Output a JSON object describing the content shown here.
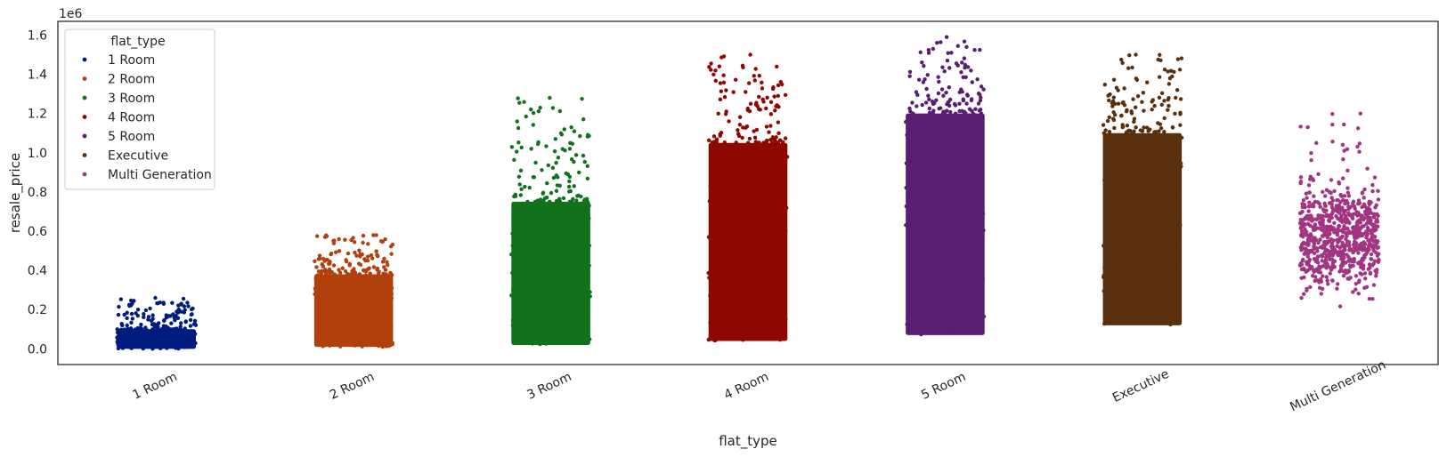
{
  "chart_data": {
    "type": "scatter",
    "subtype": "strip",
    "title": "",
    "xlabel": "flat_type",
    "ylabel": "resale_price",
    "y_offset_label": "1e6",
    "ylim": [
      -0.08,
      1.67
    ],
    "yticks": [
      0.0,
      0.2,
      0.4,
      0.6,
      0.8,
      1.0,
      1.2,
      1.4,
      1.6
    ],
    "ytick_labels": [
      "0.0",
      "0.2",
      "0.4",
      "0.6",
      "0.8",
      "1.0",
      "1.2",
      "1.4",
      "1.6"
    ],
    "categories": [
      "1 Room",
      "2 Room",
      "3 Room",
      "4 Room",
      "5 Room",
      "Executive",
      "Multi Generation"
    ],
    "legend": {
      "title": "flat_type",
      "position": "upper-left"
    },
    "series": [
      {
        "name": "1 Room",
        "color": "#001c7f",
        "core_range": [
          0.0,
          0.1
        ],
        "spread_range": [
          0.1,
          0.26
        ],
        "max": 0.26
      },
      {
        "name": "2 Room",
        "color": "#b1400d",
        "core_range": [
          0.01,
          0.38
        ],
        "spread_range": [
          0.38,
          0.58
        ],
        "max": 0.58
      },
      {
        "name": "3 Room",
        "color": "#12711c",
        "core_range": [
          0.02,
          0.75
        ],
        "spread_range": [
          0.75,
          1.28
        ],
        "max": 1.28
      },
      {
        "name": "4 Room",
        "color": "#8c0800",
        "core_range": [
          0.04,
          1.05
        ],
        "spread_range": [
          1.05,
          1.5
        ],
        "max": 1.5
      },
      {
        "name": "5 Room",
        "color": "#591e71",
        "core_range": [
          0.07,
          1.2
        ],
        "spread_range": [
          1.2,
          1.59
        ],
        "max": 1.59
      },
      {
        "name": "Executive",
        "color": "#592f0d",
        "core_range": [
          0.12,
          1.1
        ],
        "spread_range": [
          1.1,
          1.5
        ],
        "max": 1.5
      },
      {
        "name": "Multi Generation",
        "color": "#a23582",
        "core_range": [
          0.2,
          0.95
        ],
        "spread_range": [
          0.15,
          1.2
        ],
        "max": 1.2
      }
    ]
  }
}
